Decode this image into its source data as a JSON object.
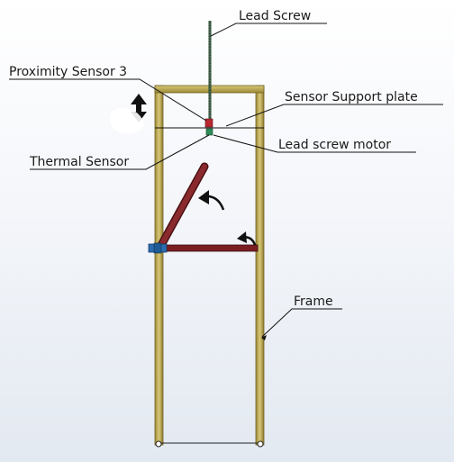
{
  "labels": {
    "lead_screw": "Lead Screw",
    "proximity_sensor": "Proximity Sensor 3",
    "sensor_support_plate": "Sensor Support plate",
    "lead_screw_motor": "Lead screw motor",
    "thermal_sensor": "Thermal Sensor",
    "frame": "Frame"
  },
  "icons": {
    "vertical_motion": "double-arrow-updown-icon",
    "rotation_upper": "curved-arrow-icon",
    "rotation_lower": "curved-arrow-icon"
  },
  "colors": {
    "frame": "#c8b45a",
    "arm": "#7a1e22",
    "screw": "#2c4a34",
    "sensor": "#b8282e",
    "motor": "#2e8b57",
    "joint": "#2b6cb0"
  }
}
